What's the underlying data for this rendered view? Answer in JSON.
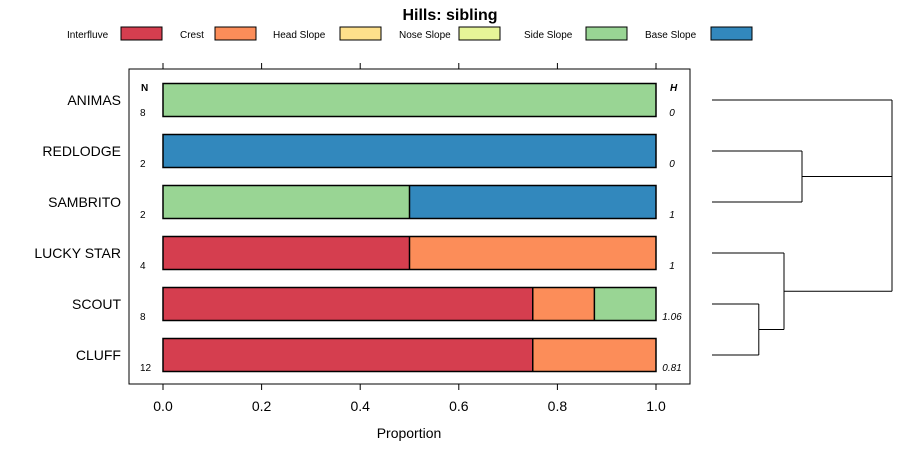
{
  "chart_data": {
    "type": "bar",
    "orientation": "horizontal",
    "stacked": true,
    "title": "Hills: sibling",
    "xlabel": "Proportion",
    "xlim": [
      0,
      1
    ],
    "xticks": [
      "0.0",
      "0.2",
      "0.4",
      "0.6",
      "0.8",
      "1.0"
    ],
    "legend_position": "top",
    "n_header": "N",
    "h_header": "H",
    "classes": [
      {
        "name": "Interfluve",
        "color": "#d53e4f"
      },
      {
        "name": "Crest",
        "color": "#fc8d59"
      },
      {
        "name": "Head Slope",
        "color": "#fee08b"
      },
      {
        "name": "Nose Slope",
        "color": "#e6f598"
      },
      {
        "name": "Side Slope",
        "color": "#99d594"
      },
      {
        "name": "Base Slope",
        "color": "#3288bd"
      }
    ],
    "rows": [
      {
        "label": "ANIMAS",
        "n": "8",
        "h": "0",
        "values": [
          0,
          0,
          0,
          0,
          1,
          0
        ]
      },
      {
        "label": "REDLODGE",
        "n": "2",
        "h": "0",
        "values": [
          0,
          0,
          0,
          0,
          0,
          1
        ]
      },
      {
        "label": "SAMBRITO",
        "n": "2",
        "h": "1",
        "values": [
          0,
          0,
          0,
          0,
          0.5,
          0.5
        ]
      },
      {
        "label": "LUCKY STAR",
        "n": "4",
        "h": "1",
        "values": [
          0.5,
          0.5,
          0,
          0,
          0,
          0
        ]
      },
      {
        "label": "SCOUT",
        "n": "8",
        "h": "1.06",
        "values": [
          0.75,
          0.125,
          0,
          0,
          0.125,
          0
        ]
      },
      {
        "label": "CLUFF",
        "n": "12",
        "h": "0.81",
        "values": [
          0.75,
          0.25,
          0,
          0,
          0,
          0
        ]
      }
    ],
    "dendrogram": {
      "leaves": [
        "ANIMAS",
        "REDLODGE",
        "SAMBRITO",
        "LUCKY STAR",
        "SCOUT",
        "CLUFF"
      ],
      "merges": [
        {
          "left": "SCOUT",
          "right": "CLUFF",
          "height": 0.26
        },
        {
          "left": "LUCKY STAR",
          "right": "SCOUT+CLUFF",
          "height": 0.4
        },
        {
          "left": "REDLODGE",
          "right": "SAMBRITO",
          "height": 0.5
        },
        {
          "left": "ANIMAS",
          "right": "REDLODGE+SAMBRITO",
          "height": 1.0
        },
        {
          "left": "ANIMAS+REDLODGE+SAMBRITO",
          "right": "LUCKY STAR+SCOUT+CLUFF",
          "height": 1.0
        }
      ]
    }
  }
}
